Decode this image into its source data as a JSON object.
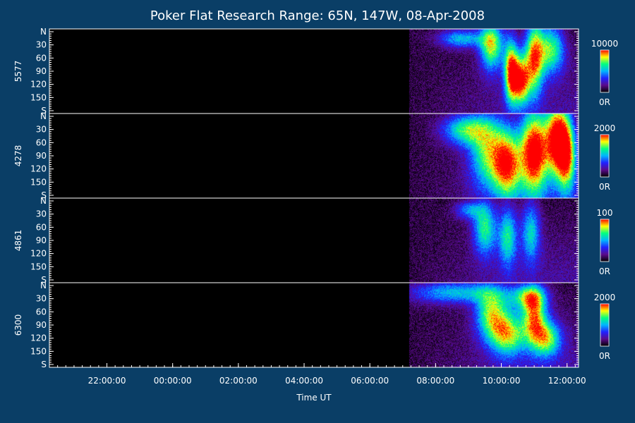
{
  "chart_data": {
    "type": "heatmap",
    "title": "Poker Flat Research Range: 65N, 147W, 08-Apr-2008",
    "xlabel": "Time UT",
    "x_ticks": [
      "22:00:00",
      "00:00:00",
      "02:00:00",
      "04:00:00",
      "06:00:00",
      "08:00:00",
      "10:00:00",
      "12:00:00"
    ],
    "y_ticks": [
      "N",
      "30",
      "60",
      "90",
      "120",
      "150",
      "S"
    ],
    "ylim": [
      0,
      180
    ],
    "data_start_time": "07:12:00",
    "colormap": [
      "#000000",
      "#5a0a8a",
      "#2020ff",
      "#00b4ff",
      "#00ff80",
      "#ffff00",
      "#ff0000"
    ],
    "panels": [
      {
        "name": "5577",
        "colorbar_max": "10000",
        "colorbar_min": "0R",
        "blobs": [
          {
            "t": 9.7,
            "a": 30,
            "wt": 0.25,
            "wa": 40,
            "v": 0.7
          },
          {
            "t": 10.3,
            "a": 90,
            "wt": 0.15,
            "wa": 50,
            "v": 0.85
          },
          {
            "t": 10.6,
            "a": 110,
            "wt": 0.18,
            "wa": 40,
            "v": 0.8
          },
          {
            "t": 11.0,
            "a": 60,
            "wt": 0.2,
            "wa": 60,
            "v": 0.75
          },
          {
            "t": 11.5,
            "a": 40,
            "wt": 0.3,
            "wa": 40,
            "v": 0.6
          },
          {
            "t": 8.8,
            "a": 15,
            "wt": 0.5,
            "wa": 15,
            "v": 0.45
          }
        ]
      },
      {
        "name": "4278",
        "colorbar_max": "2000",
        "colorbar_min": "0R",
        "blobs": [
          {
            "t": 11.0,
            "a": 80,
            "wt": 0.3,
            "wa": 70,
            "v": 1.0
          },
          {
            "t": 11.7,
            "a": 50,
            "wt": 0.25,
            "wa": 60,
            "v": 0.95
          },
          {
            "t": 10.2,
            "a": 110,
            "wt": 0.3,
            "wa": 55,
            "v": 0.75
          },
          {
            "t": 9.6,
            "a": 80,
            "wt": 0.4,
            "wa": 60,
            "v": 0.6
          },
          {
            "t": 8.9,
            "a": 30,
            "wt": 0.5,
            "wa": 25,
            "v": 0.55
          },
          {
            "t": 12.0,
            "a": 90,
            "wt": 0.2,
            "wa": 60,
            "v": 0.7
          }
        ]
      },
      {
        "name": "4861",
        "colorbar_max": "100",
        "colorbar_min": "0R",
        "blobs": [
          {
            "t": 9.5,
            "a": 60,
            "wt": 0.25,
            "wa": 45,
            "v": 0.55
          },
          {
            "t": 10.2,
            "a": 80,
            "wt": 0.2,
            "wa": 50,
            "v": 0.5
          },
          {
            "t": 10.9,
            "a": 70,
            "wt": 0.2,
            "wa": 50,
            "v": 0.45
          },
          {
            "t": 9.0,
            "a": 20,
            "wt": 0.3,
            "wa": 15,
            "v": 0.35
          }
        ]
      },
      {
        "name": "6300",
        "colorbar_max": "2000",
        "colorbar_min": "0R",
        "blobs": [
          {
            "t": 8.6,
            "a": 15,
            "wt": 1.0,
            "wa": 18,
            "v": 0.45
          },
          {
            "t": 9.7,
            "a": 60,
            "wt": 0.35,
            "wa": 40,
            "v": 0.6
          },
          {
            "t": 10.2,
            "a": 110,
            "wt": 0.4,
            "wa": 35,
            "v": 0.65
          },
          {
            "t": 11.0,
            "a": 70,
            "wt": 0.25,
            "wa": 45,
            "v": 0.7
          },
          {
            "t": 11.4,
            "a": 120,
            "wt": 0.3,
            "wa": 30,
            "v": 0.6
          },
          {
            "t": 10.8,
            "a": 25,
            "wt": 0.4,
            "wa": 20,
            "v": 0.5
          }
        ]
      }
    ]
  }
}
